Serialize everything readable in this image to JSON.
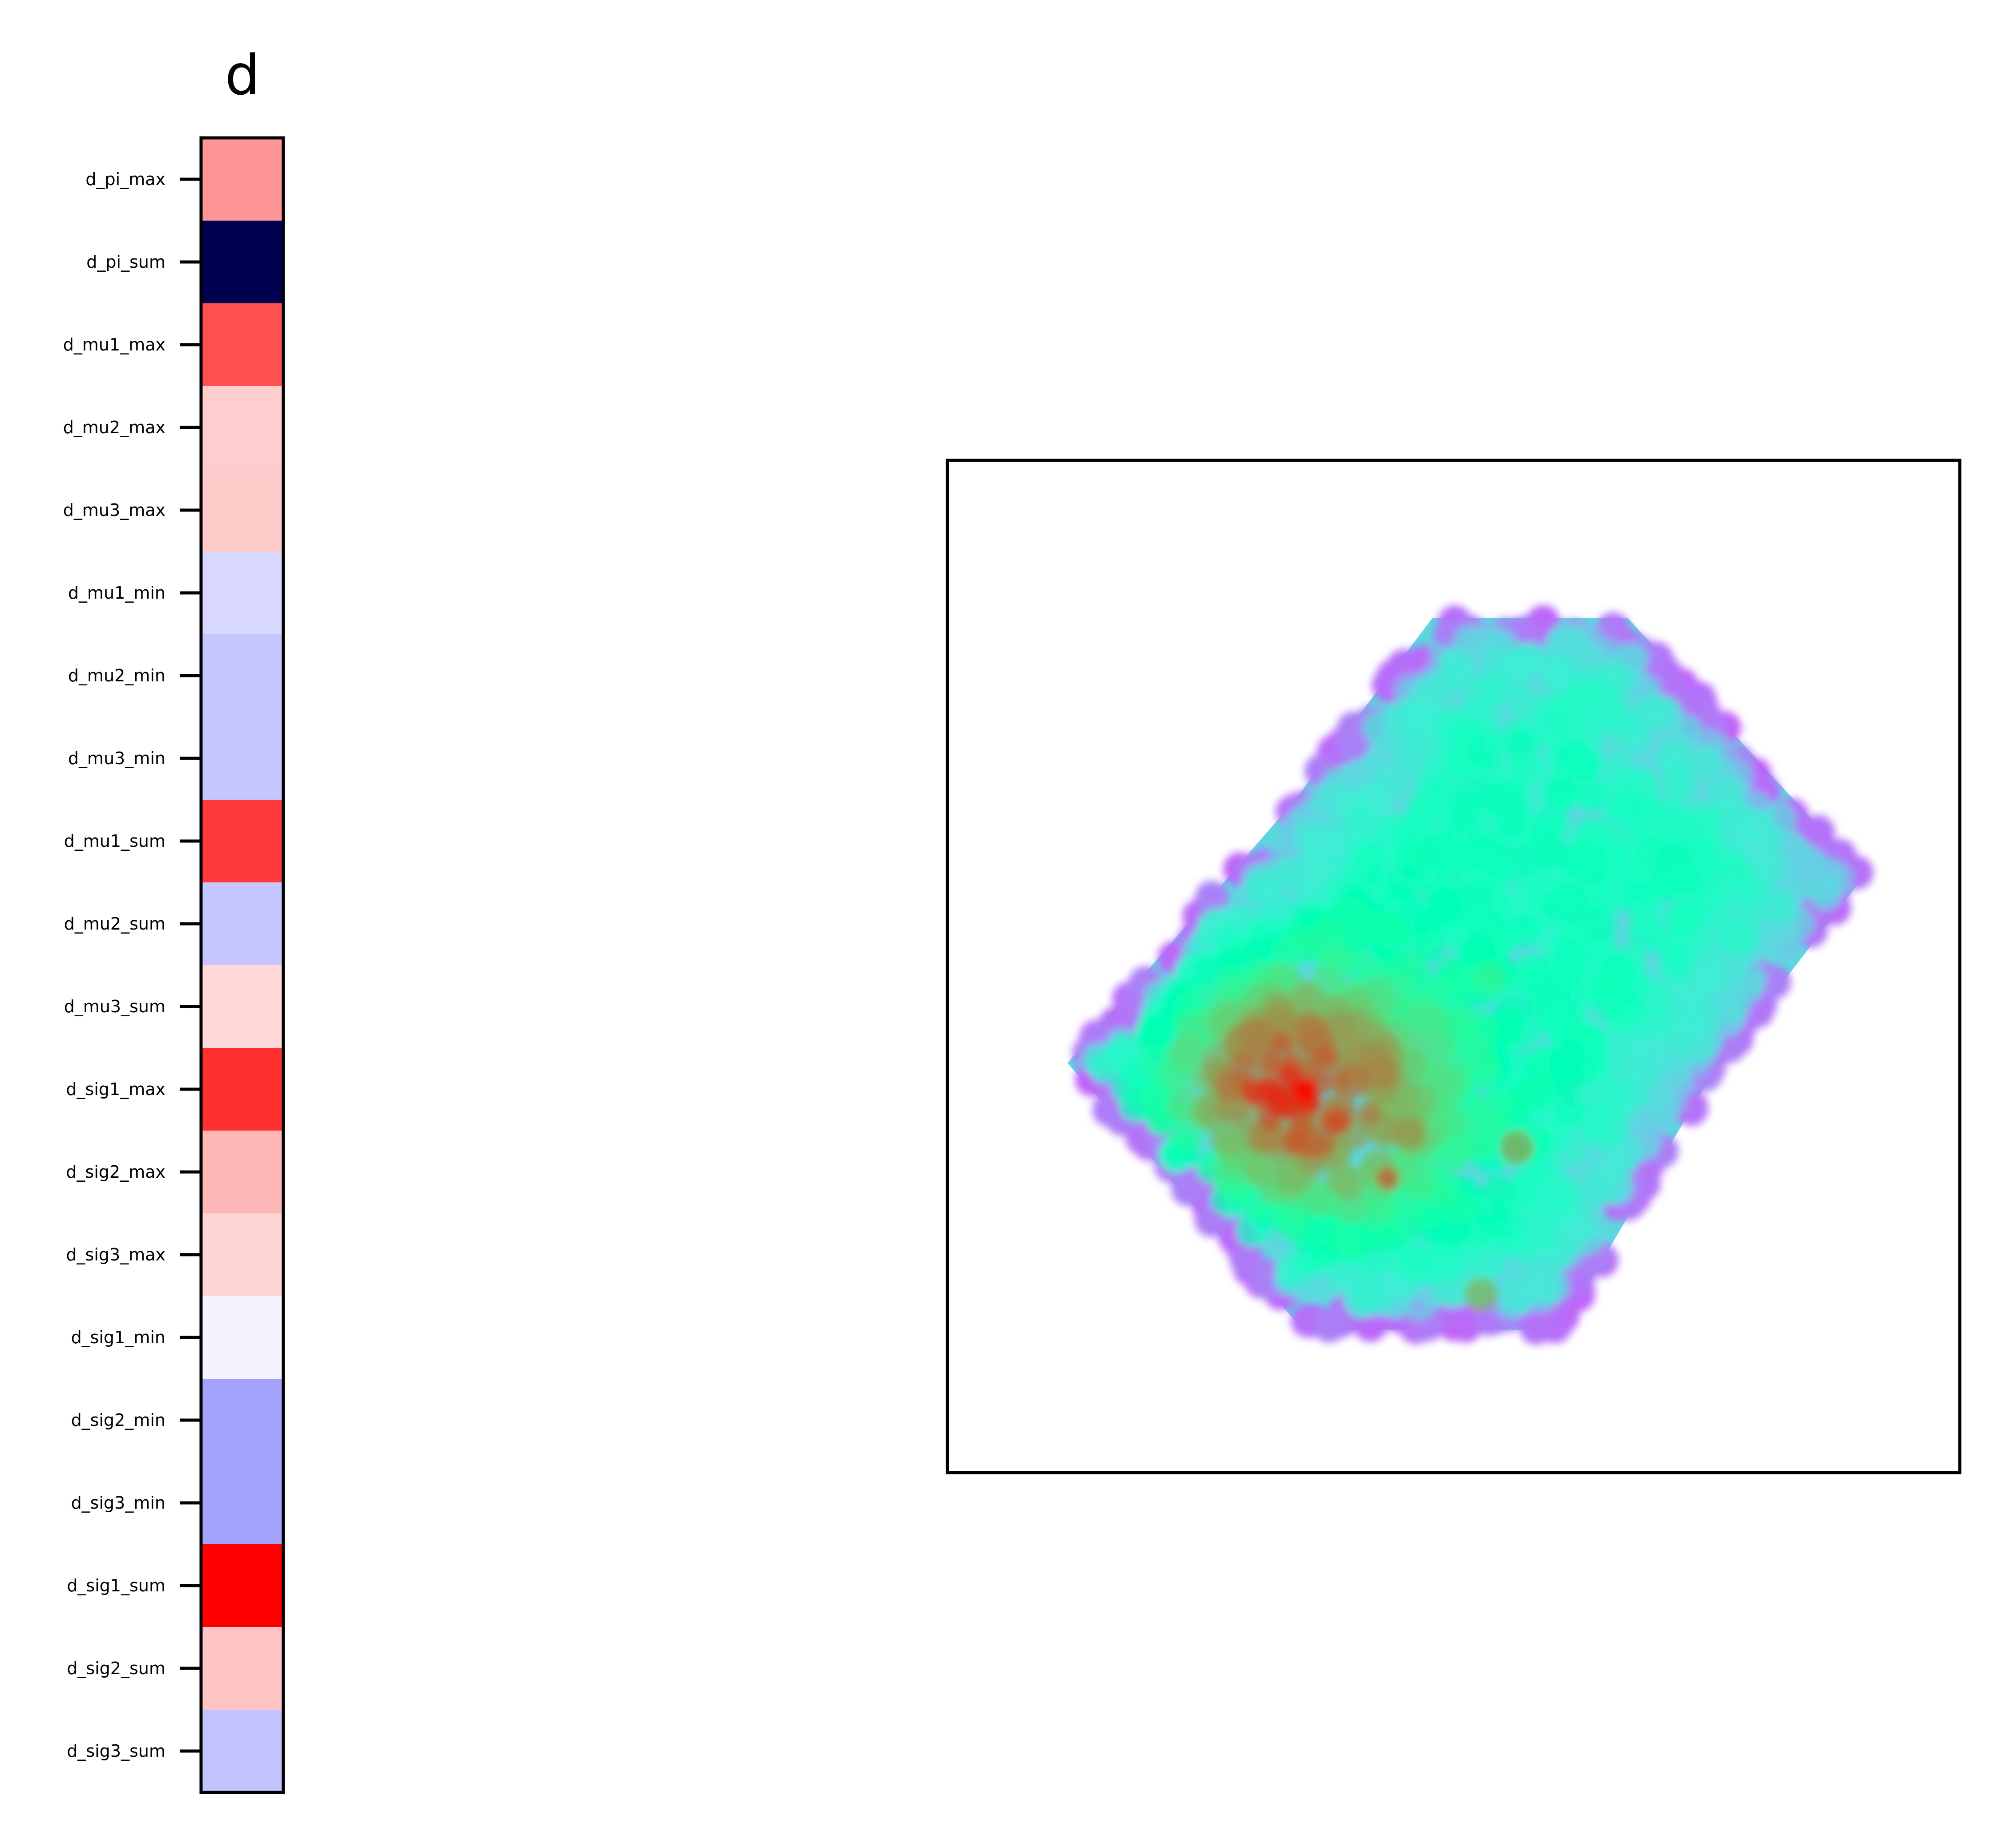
{
  "chart_data": [
    {
      "type": "heatmap",
      "title": "d",
      "colormap": "bwr",
      "tick_labels": [
        "d_pi_max",
        "d_pi_sum",
        "d_mu1_max",
        "d_mu2_max",
        "d_mu3_max",
        "d_mu1_min",
        "d_mu2_min",
        "d_mu3_min",
        "d_mu1_sum",
        "d_mu2_sum",
        "d_mu3_sum",
        "d_sig1_max",
        "d_sig2_max",
        "d_sig3_max",
        "d_sig1_min",
        "d_sig2_min",
        "d_sig3_min",
        "d_sig1_sum",
        "d_sig2_sum",
        "d_sig3_sum"
      ],
      "cell_colors": [
        "#ff9696",
        "#000050",
        "#ff5050",
        "#ffcdcd",
        "#ffcaca",
        "#d8d8ff",
        "#c6c6ff",
        "#c6c6ff",
        "#ff3a3a",
        "#c6c6ff",
        "#ffd8d8",
        "#ff3030",
        "#ffb6b6",
        "#ffd4d4",
        "#f4f4ff",
        "#a3a3ff",
        "#a3a3ff",
        "#ff0000",
        "#ffc4c4",
        "#c3c3ff"
      ]
    },
    {
      "type": "scatter",
      "colormap": "rainbow",
      "axes_ticks": "none",
      "shape": "hexagonal cluster of overlapping points, dense red core toward lower-left"
    }
  ]
}
